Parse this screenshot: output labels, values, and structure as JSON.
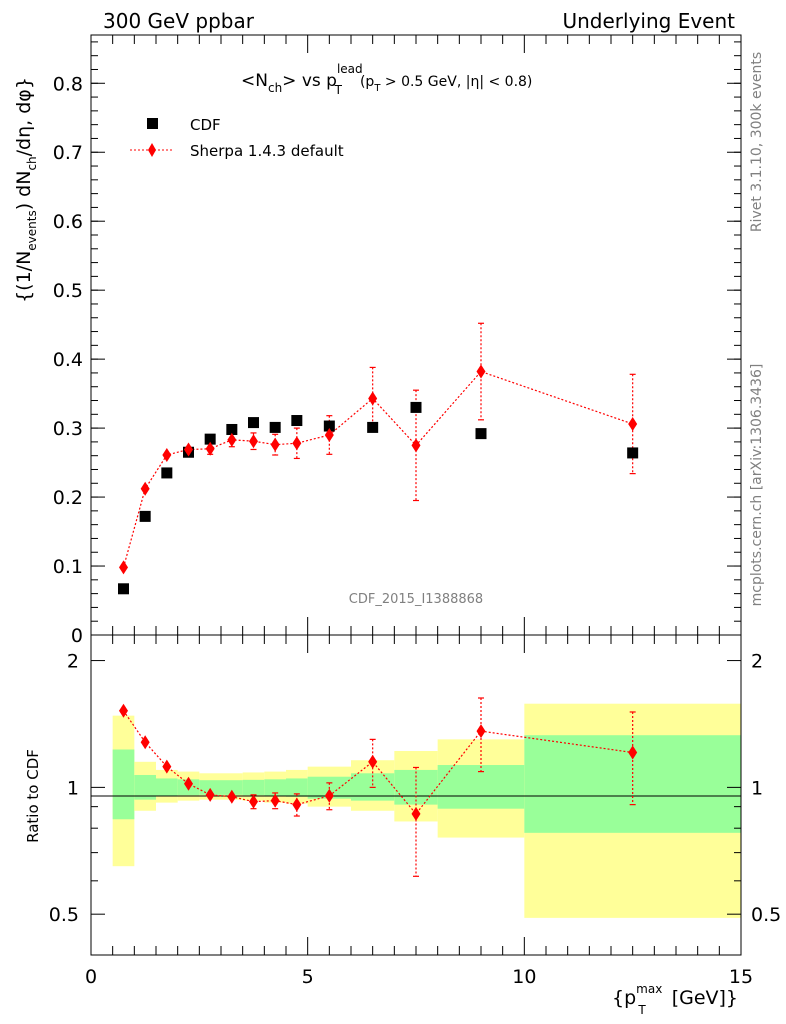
{
  "header": {
    "left": "300 GeV ppbar",
    "right": "Underlying Event"
  },
  "side_text": {
    "rivet": "Rivet 3.1.10,  300k events",
    "mcplots": "mcplots.cern.ch [arXiv:1306.3436]"
  },
  "watermark": "CDF_2015_I1388868",
  "chart_data": [
    {
      "type": "scatter",
      "title": "<N_ch> vs p_T^lead (p_T > 0.5 GeV, |η| < 0.8)",
      "title_parts": {
        "a": "<N",
        "a_sub": "ch",
        "b": "> vs p",
        "b_sup": "lead",
        "b_sub": "T",
        "c": "(p",
        "c_sub": "T",
        "d": " > 0.5 GeV, |η| < 0.8)"
      },
      "ylabel": "{(1/N_events) dN_ch/dη, dφ}",
      "ylabel_parts": {
        "a": "{(1/N",
        "a_sub": "events",
        "b": ") dN",
        "b_sub": "ch",
        "c": "/dη, dφ}"
      },
      "xlim": [
        0,
        15
      ],
      "ylim": [
        0,
        0.87
      ],
      "y_ticks": [
        "0",
        "0.1",
        "0.2",
        "0.3",
        "0.4",
        "0.5",
        "0.6",
        "0.7",
        "0.8"
      ],
      "legend_position": "top-left",
      "series": [
        {
          "name": "CDF",
          "color": "#000000",
          "marker": "square",
          "x": [
            0.75,
            1.25,
            1.75,
            2.25,
            2.75,
            3.25,
            3.75,
            4.25,
            4.75,
            5.5,
            6.5,
            7.5,
            9.0,
            12.5
          ],
          "y": [
            0.067,
            0.172,
            0.235,
            0.265,
            0.284,
            0.298,
            0.308,
            0.301,
            0.311,
            0.303,
            0.301,
            0.33,
            0.292,
            0.264
          ]
        },
        {
          "name": "Sherpa 1.4.3 default",
          "color": "#ff0000",
          "marker": "diamond",
          "line": "dotted",
          "x": [
            0.75,
            1.25,
            1.75,
            2.25,
            2.75,
            3.25,
            3.75,
            4.25,
            4.75,
            5.5,
            6.5,
            7.5,
            9.0,
            12.5
          ],
          "y": [
            0.098,
            0.212,
            0.261,
            0.269,
            0.27,
            0.283,
            0.281,
            0.276,
            0.278,
            0.29,
            0.343,
            0.275,
            0.382,
            0.306
          ],
          "yerr": [
            0.003,
            0.004,
            0.005,
            0.006,
            0.008,
            0.01,
            0.012,
            0.015,
            0.022,
            0.028,
            0.045,
            0.08,
            0.07,
            0.072
          ]
        }
      ]
    },
    {
      "type": "scatter",
      "ylabel": "Ratio to CDF",
      "xlabel": "{p_T^max [GeV]}",
      "xlabel_parts": {
        "a": "{p",
        "a_sup": "max",
        "a_sub": "T",
        "b": " [GeV]}"
      },
      "xlim": [
        0,
        15
      ],
      "ylim": [
        0.4,
        2.3
      ],
      "log_y": true,
      "x_ticks": [
        "0",
        "5",
        "10",
        "15"
      ],
      "y_ticks": [
        "0.5",
        "1",
        "2"
      ],
      "reference_line": 1,
      "bands": {
        "bins": [
          [
            0.5,
            1.0
          ],
          [
            1.0,
            1.5
          ],
          [
            1.5,
            2.0
          ],
          [
            2.0,
            2.5
          ],
          [
            2.5,
            3.0
          ],
          [
            3.0,
            3.5
          ],
          [
            3.5,
            4.0
          ],
          [
            4.0,
            4.5
          ],
          [
            4.5,
            5.0
          ],
          [
            5.0,
            6.0
          ],
          [
            6.0,
            7.0
          ],
          [
            7.0,
            8.0
          ],
          [
            8.0,
            10.0
          ],
          [
            10.0,
            15.0
          ]
        ],
        "stat_color": "#99ff99",
        "total_color": "#ffff99",
        "stat_lo": [
          0.84,
          0.935,
          0.955,
          0.958,
          0.96,
          0.96,
          0.958,
          0.955,
          0.95,
          0.94,
          0.93,
          0.91,
          0.89,
          0.78
        ],
        "stat_hi": [
          1.23,
          1.07,
          1.05,
          1.045,
          1.04,
          1.04,
          1.042,
          1.045,
          1.05,
          1.06,
          1.08,
          1.1,
          1.13,
          1.33
        ],
        "total_lo": [
          0.65,
          0.88,
          0.92,
          0.93,
          0.935,
          0.935,
          0.93,
          0.92,
          0.915,
          0.9,
          0.88,
          0.83,
          0.76,
          0.49
        ],
        "total_hi": [
          1.48,
          1.15,
          1.1,
          1.09,
          1.08,
          1.08,
          1.085,
          1.09,
          1.1,
          1.12,
          1.16,
          1.22,
          1.3,
          1.58
        ]
      },
      "series": [
        {
          "name": "Sherpa 1.4.3 default",
          "color": "#ff0000",
          "marker": "diamond",
          "line": "dotted",
          "x": [
            0.75,
            1.25,
            1.75,
            2.25,
            2.75,
            3.25,
            3.75,
            4.25,
            4.75,
            5.5,
            6.5,
            7.5,
            9.0,
            12.5
          ],
          "y": [
            1.52,
            1.28,
            1.12,
            1.02,
            0.96,
            0.95,
            0.925,
            0.93,
            0.91,
            0.955,
            1.15,
            0.865,
            1.36,
            1.21
          ],
          "yerr": [
            0.02,
            0.02,
            0.02,
            0.025,
            0.03,
            0.03,
            0.035,
            0.04,
            0.055,
            0.07,
            0.15,
            0.25,
            0.27,
            0.3
          ]
        }
      ]
    }
  ]
}
